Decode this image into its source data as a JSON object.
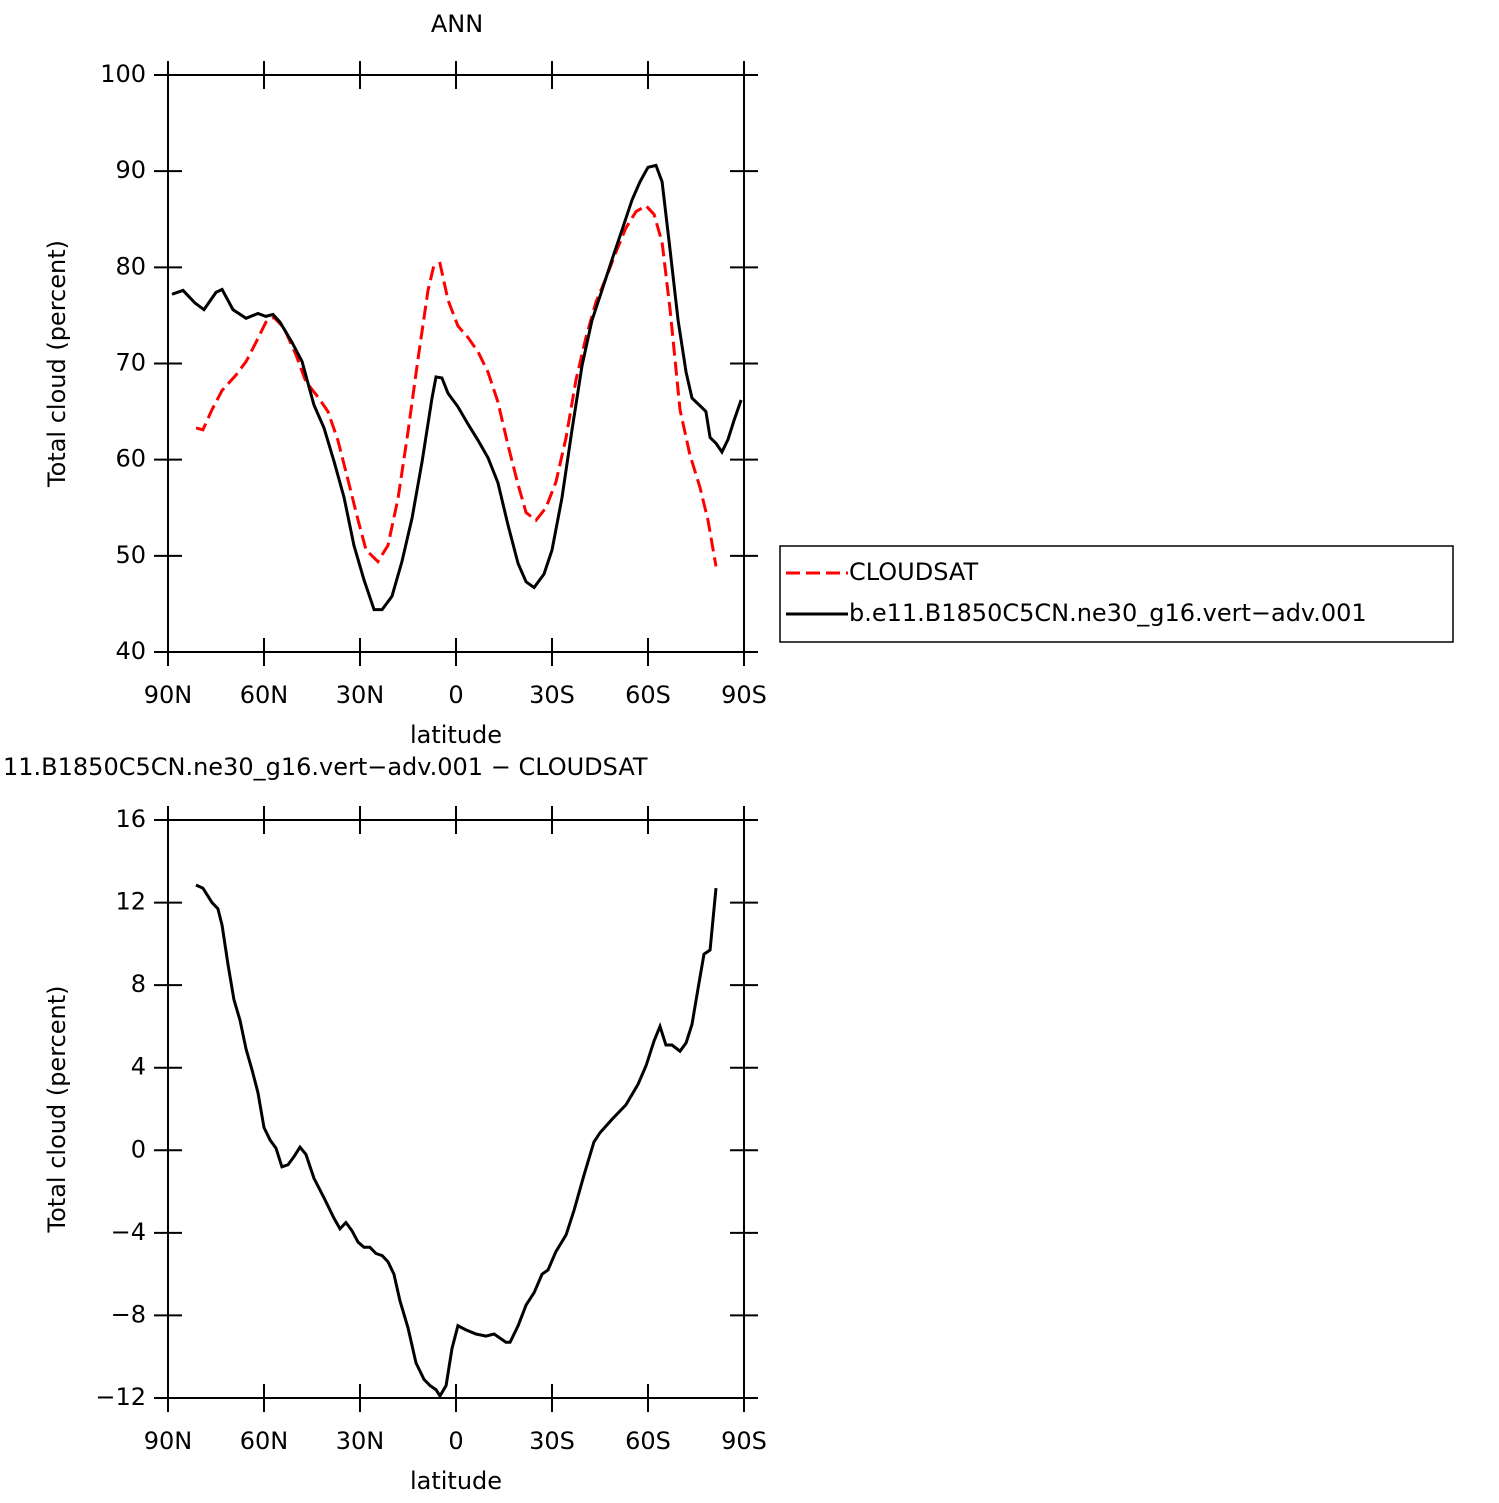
{
  "chart_data": [
    {
      "type": "line",
      "title": "ANN",
      "xlabel": "latitude",
      "ylabel": "Total cloud (percent)",
      "xlim": [
        90,
        -90
      ],
      "xticks": [
        {
          "value": 90,
          "label": "90N"
        },
        {
          "value": 60,
          "label": "60N"
        },
        {
          "value": 30,
          "label": "30N"
        },
        0,
        {
          "value": -30,
          "label": "30S"
        },
        {
          "value": -60,
          "label": "60S"
        },
        {
          "value": -90,
          "label": "90S"
        }
      ],
      "ylim": [
        40,
        100
      ],
      "yticks": [
        40,
        50,
        60,
        70,
        80,
        90,
        100
      ],
      "legend": "right",
      "series": [
        {
          "name": "CLOUDSAT",
          "color": "#ff0000",
          "line_style": "dashed",
          "x": [
            81.25,
            79.1,
            76.25,
            73.1,
            68.75,
            65.6,
            62.5,
            59.4,
            56.9,
            53.75,
            50,
            46.9,
            43.1,
            40,
            36.9,
            33.75,
            30.6,
            28.1,
            24.4,
            21.25,
            18.1,
            15,
            11.9,
            8.75,
            6.9,
            5,
            2.5,
            -0.6,
            -3.75,
            -6.9,
            -10,
            -13.1,
            -16.25,
            -19.4,
            -21.9,
            -25,
            -28.1,
            -31.25,
            -34.4,
            -37.5,
            -40.6,
            -43.75,
            -46.9,
            -50,
            -53.1,
            -56.25,
            -59.4,
            -61.9,
            -64.4,
            -66.9,
            -70,
            -73.1,
            -76.25,
            -78.75,
            -81.25
          ],
          "values": [
            63.3,
            63.1,
            65.2,
            67.2,
            68.8,
            70.2,
            72.2,
            74.3,
            74.8,
            73.7,
            70.9,
            68.1,
            66.5,
            65.0,
            62.0,
            57.9,
            53.7,
            50.6,
            49.4,
            51.1,
            56.0,
            62.9,
            70.4,
            77.6,
            80.2,
            80.4,
            76.6,
            73.9,
            72.7,
            71.2,
            69.1,
            66.0,
            61.5,
            57.4,
            54.5,
            53.7,
            55.0,
            57.7,
            62.3,
            68.3,
            72.7,
            76.4,
            78.9,
            81.6,
            84.1,
            85.8,
            86.4,
            85.5,
            82.6,
            75.6,
            65.2,
            60.5,
            57.1,
            53.7,
            48.9
          ]
        },
        {
          "name": "b.e11.B1850C5CN.ne30_g16.vert−adv.001",
          "color": "#000000",
          "line_style": "solid",
          "x": [
            88.75,
            85.3,
            81.6,
            78.75,
            75,
            73.1,
            69.7,
            65.6,
            61.9,
            59.4,
            57.2,
            55,
            51.25,
            48.1,
            44.4,
            41.25,
            38.1,
            35,
            31.9,
            28.75,
            25.6,
            23.1,
            20,
            16.9,
            13.75,
            10.6,
            7.5,
            6.25,
            4.4,
            2.5,
            -0.6,
            -3.75,
            -6.9,
            -10,
            -13.1,
            -16.25,
            -19.4,
            -21.9,
            -24.4,
            -27.5,
            -30,
            -33.1,
            -36.25,
            -39.4,
            -42.5,
            -45.6,
            -48.75,
            -51.9,
            -55,
            -57.5,
            -60,
            -62.5,
            -64.4,
            -66.9,
            -69.4,
            -71.9,
            -73.75,
            -76.9,
            -78.1,
            -79.4,
            -81.25,
            -83.1,
            -85,
            -86.9,
            -89.1
          ],
          "values": [
            77.2,
            77.6,
            76.3,
            75.6,
            77.4,
            77.7,
            75.6,
            74.7,
            75.2,
            74.9,
            75.1,
            74.3,
            72.2,
            70.2,
            65.7,
            63.3,
            59.8,
            56.1,
            51.1,
            47.5,
            44.4,
            44.4,
            45.8,
            49.4,
            53.9,
            59.8,
            66.4,
            68.6,
            68.5,
            66.9,
            65.5,
            63.7,
            62.0,
            60.2,
            57.6,
            53.2,
            49.2,
            47.3,
            46.7,
            48.1,
            50.6,
            56.0,
            63.1,
            69.8,
            74.5,
            77.6,
            80.8,
            83.9,
            87.0,
            88.9,
            90.4,
            90.6,
            88.9,
            81.8,
            74.5,
            69.1,
            66.4,
            65.4,
            65.0,
            62.3,
            61.7,
            60.8,
            62.1,
            64.1,
            66.2
          ]
        }
      ]
    },
    {
      "type": "line",
      "title": "11.B1850C5CN.ne30_g16.vert−adv.001 − CLOUDSAT",
      "xlabel": "latitude",
      "ylabel": "Total cloud (percent)",
      "xlim": [
        90,
        -90
      ],
      "xticks": [
        {
          "value": 90,
          "label": "90N"
        },
        {
          "value": 60,
          "label": "60N"
        },
        {
          "value": 30,
          "label": "30N"
        },
        0,
        {
          "value": -30,
          "label": "30S"
        },
        {
          "value": -60,
          "label": "60S"
        },
        {
          "value": -90,
          "label": "90S"
        }
      ],
      "ylim": [
        -12,
        16
      ],
      "yticks": [
        {
          "value": -12,
          "label": "−12"
        },
        {
          "value": -8,
          "label": "−8"
        },
        {
          "value": -4,
          "label": "−4"
        },
        0,
        4,
        8,
        12,
        16
      ],
      "series": [
        {
          "color": "#000000",
          "line_style": "solid",
          "x": [
            81.25,
            79.1,
            76.25,
            74.4,
            73.1,
            71.25,
            69.4,
            67.5,
            65.6,
            63.75,
            61.9,
            60,
            58.1,
            56.25,
            54.4,
            52.5,
            50.6,
            48.75,
            46.9,
            44.4,
            41.25,
            38.1,
            36.25,
            34.4,
            32.5,
            30.6,
            28.75,
            26.9,
            25,
            23.1,
            21.25,
            19.4,
            17.5,
            15,
            12.5,
            10,
            8.1,
            6.25,
            5,
            3.1,
            1.25,
            -0.6,
            -3.1,
            -6.25,
            -9.4,
            -11.9,
            -13.75,
            -15.6,
            -16.9,
            -19.4,
            -21.9,
            -24.4,
            -26.9,
            -28.75,
            -31.25,
            -34.4,
            -36.9,
            -40,
            -43.1,
            -45,
            -48.75,
            -53.1,
            -56.9,
            -59.4,
            -61.9,
            -63.75,
            -65.6,
            -67.5,
            -70,
            -71.9,
            -73.75,
            -75.6,
            -77.5,
            -79.4,
            -81.25
          ],
          "values": [
            12.85,
            12.7,
            12.0,
            11.7,
            10.9,
            9.0,
            7.3,
            6.3,
            4.9,
            3.9,
            2.8,
            1.1,
            0.5,
            0.1,
            -0.8,
            -0.7,
            -0.3,
            0.15,
            -0.2,
            -1.35,
            -2.3,
            -3.3,
            -3.8,
            -3.5,
            -3.9,
            -4.45,
            -4.7,
            -4.7,
            -5.0,
            -5.1,
            -5.4,
            -6.0,
            -7.3,
            -8.6,
            -10.3,
            -11.1,
            -11.4,
            -11.6,
            -11.9,
            -11.4,
            -9.6,
            -8.5,
            -8.7,
            -8.9,
            -9.0,
            -8.9,
            -9.1,
            -9.3,
            -9.3,
            -8.5,
            -7.5,
            -6.9,
            -6.0,
            -5.8,
            -4.9,
            -4.1,
            -2.9,
            -1.2,
            0.4,
            0.85,
            1.5,
            2.2,
            3.2,
            4.1,
            5.3,
            6.0,
            5.1,
            5.1,
            4.8,
            5.2,
            6.1,
            7.8,
            9.5,
            9.7,
            12.7
          ]
        }
      ]
    }
  ]
}
